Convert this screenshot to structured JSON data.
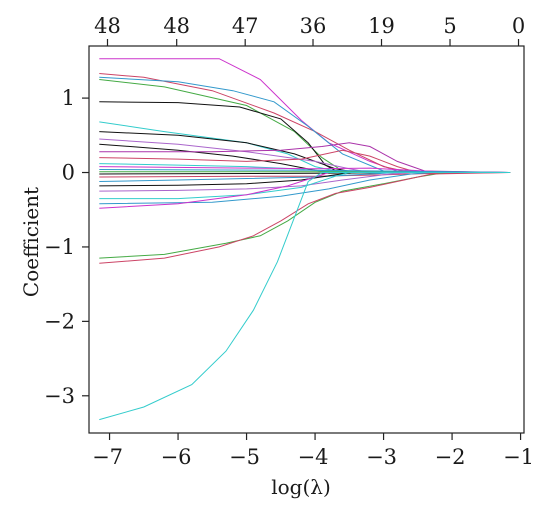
{
  "chart_data": {
    "type": "line",
    "title": "",
    "xlabel": "log(λ)",
    "ylabel": "Coefficient",
    "xlim": [
      -7.3,
      -0.95
    ],
    "ylim": [
      -3.5,
      1.7
    ],
    "x_ticks": [
      -7,
      -6,
      -5,
      -4,
      -3,
      -2,
      -1
    ],
    "x_tick_labels": [
      "−7",
      "−6",
      "−5",
      "−4",
      "−3",
      "−2",
      "−1"
    ],
    "y_ticks": [
      -3,
      -2,
      -1,
      0,
      1
    ],
    "y_tick_labels": [
      "−3",
      "−2",
      "−1",
      "0",
      "1"
    ],
    "top_axis": {
      "positions": [
        -7.03,
        -6.02,
        -5.02,
        -4.03,
        -3.03,
        -2.03,
        -1.03
      ],
      "labels": [
        "48",
        "48",
        "47",
        "36",
        "19",
        "5",
        "0"
      ]
    },
    "grid": false,
    "legend": "none",
    "series": [
      {
        "color": "#cc33cc",
        "points": [
          [
            -7.15,
            1.53
          ],
          [
            -5.4,
            1.53
          ],
          [
            -4.8,
            1.25
          ],
          [
            -4.2,
            0.7
          ],
          [
            -3.8,
            0.4
          ],
          [
            -3.2,
            0.15
          ],
          [
            -2.8,
            0.02
          ],
          [
            -1.15,
            0
          ]
        ]
      },
      {
        "color": "#cc4466",
        "points": [
          [
            -7.15,
            1.33
          ],
          [
            -6.5,
            1.28
          ],
          [
            -5.5,
            1.1
          ],
          [
            -4.6,
            0.8
          ],
          [
            -4,
            0.55
          ],
          [
            -3.5,
            0.3
          ],
          [
            -3,
            0.08
          ],
          [
            -2.6,
            0
          ],
          [
            -1.15,
            0
          ]
        ]
      },
      {
        "color": "#3399cc",
        "points": [
          [
            -7.15,
            1.28
          ],
          [
            -6,
            1.22
          ],
          [
            -5.2,
            1.1
          ],
          [
            -4.6,
            0.95
          ],
          [
            -4.1,
            0.62
          ],
          [
            -3.6,
            0.25
          ],
          [
            -3,
            0.02
          ],
          [
            -1.15,
            0
          ]
        ]
      },
      {
        "color": "#44aa44",
        "points": [
          [
            -7.15,
            1.25
          ],
          [
            -6.2,
            1.15
          ],
          [
            -5,
            0.9
          ],
          [
            -4.3,
            0.55
          ],
          [
            -3.9,
            0.2
          ],
          [
            -3.6,
            0.02
          ],
          [
            -1.15,
            0
          ]
        ]
      },
      {
        "color": "#111111",
        "points": [
          [
            -7.15,
            0.95
          ],
          [
            -6,
            0.94
          ],
          [
            -5.1,
            0.88
          ],
          [
            -4.5,
            0.72
          ],
          [
            -4.1,
            0.4
          ],
          [
            -3.85,
            0.1
          ],
          [
            -3.65,
            0
          ],
          [
            -1.15,
            0
          ]
        ]
      },
      {
        "color": "#33cccc",
        "points": [
          [
            -7.15,
            0.68
          ],
          [
            -6.2,
            0.55
          ],
          [
            -5,
            0.4
          ],
          [
            -4.4,
            0.25
          ],
          [
            -4,
            0.08
          ],
          [
            -3.6,
            0
          ],
          [
            -1.15,
            0
          ]
        ]
      },
      {
        "color": "#111111",
        "points": [
          [
            -7.15,
            0.55
          ],
          [
            -6,
            0.5
          ],
          [
            -5,
            0.4
          ],
          [
            -4.3,
            0.25
          ],
          [
            -3.7,
            0.05
          ],
          [
            -3.4,
            0
          ],
          [
            -1.15,
            0
          ]
        ]
      },
      {
        "color": "#aa66cc",
        "points": [
          [
            -7.15,
            0.45
          ],
          [
            -6,
            0.38
          ],
          [
            -5,
            0.28
          ],
          [
            -4,
            0.15
          ],
          [
            -3.5,
            0.05
          ],
          [
            -3.2,
            0
          ],
          [
            -1.15,
            0
          ]
        ]
      },
      {
        "color": "#111111",
        "points": [
          [
            -7.15,
            0.38
          ],
          [
            -6,
            0.3
          ],
          [
            -5.2,
            0.22
          ],
          [
            -4.5,
            0.12
          ],
          [
            -4,
            0.03
          ],
          [
            -3.7,
            0
          ],
          [
            -1.15,
            0
          ]
        ]
      },
      {
        "color": "#aa33aa",
        "points": [
          [
            -7.15,
            0.28
          ],
          [
            -5.5,
            0.28
          ],
          [
            -4.5,
            0.3
          ],
          [
            -3.9,
            0.35
          ],
          [
            -3.5,
            0.4
          ],
          [
            -3.2,
            0.35
          ],
          [
            -2.8,
            0.15
          ],
          [
            -2.4,
            0.02
          ],
          [
            -1.15,
            0
          ]
        ]
      },
      {
        "color": "#cc4466",
        "points": [
          [
            -7.15,
            0.2
          ],
          [
            -6,
            0.18
          ],
          [
            -5,
            0.15
          ],
          [
            -4.2,
            0.18
          ],
          [
            -3.6,
            0.3
          ],
          [
            -3.2,
            0.22
          ],
          [
            -2.8,
            0.08
          ],
          [
            -2.5,
            0
          ],
          [
            -1.15,
            0
          ]
        ]
      },
      {
        "color": "#33cccc",
        "points": [
          [
            -7.15,
            0.12
          ],
          [
            -6,
            0.1
          ],
          [
            -5,
            0.08
          ],
          [
            -4.3,
            0.05
          ],
          [
            -3.9,
            0.02
          ],
          [
            -1.15,
            0
          ]
        ]
      },
      {
        "color": "#cc33cc",
        "points": [
          [
            -7.15,
            0.08
          ],
          [
            -5,
            0.06
          ],
          [
            -4,
            0.05
          ],
          [
            -3.2,
            0.06
          ],
          [
            -2.6,
            0.03
          ],
          [
            -2.2,
            0.01
          ],
          [
            -1.15,
            0
          ]
        ]
      },
      {
        "color": "#3399cc",
        "points": [
          [
            -7.15,
            0.04
          ],
          [
            -4,
            0.03
          ],
          [
            -3,
            0.02
          ],
          [
            -2,
            0.01
          ],
          [
            -1.15,
            0
          ]
        ]
      },
      {
        "color": "#44aa44",
        "points": [
          [
            -7.15,
            0.01
          ],
          [
            -4,
            0.01
          ],
          [
            -2.5,
            0
          ],
          [
            -1.15,
            0
          ]
        ]
      },
      {
        "color": "#111111",
        "points": [
          [
            -7.15,
            -0.02
          ],
          [
            -4,
            -0.01
          ],
          [
            -2.5,
            0
          ],
          [
            -1.15,
            0
          ]
        ]
      },
      {
        "color": "#cc4466",
        "points": [
          [
            -7.15,
            -0.06
          ],
          [
            -5,
            -0.05
          ],
          [
            -4,
            -0.05
          ],
          [
            -3,
            -0.03
          ],
          [
            -2.2,
            -0.01
          ],
          [
            -1.15,
            0
          ]
        ]
      },
      {
        "color": "#3399cc",
        "points": [
          [
            -7.15,
            -0.12
          ],
          [
            -6,
            -0.1
          ],
          [
            -5,
            -0.08
          ],
          [
            -4,
            -0.06
          ],
          [
            -3.2,
            -0.02
          ],
          [
            -2.8,
            0
          ],
          [
            -1.15,
            0
          ]
        ]
      },
      {
        "color": "#111111",
        "points": [
          [
            -7.15,
            -0.18
          ],
          [
            -6,
            -0.17
          ],
          [
            -5,
            -0.15
          ],
          [
            -4.2,
            -0.1
          ],
          [
            -3.7,
            -0.03
          ],
          [
            -3.4,
            0
          ],
          [
            -1.15,
            0
          ]
        ]
      },
      {
        "color": "#aa66cc",
        "points": [
          [
            -7.15,
            -0.25
          ],
          [
            -6,
            -0.24
          ],
          [
            -5,
            -0.22
          ],
          [
            -4.2,
            -0.18
          ],
          [
            -3.6,
            -0.1
          ],
          [
            -3,
            -0.03
          ],
          [
            -2.6,
            0
          ],
          [
            -1.15,
            0
          ]
        ]
      },
      {
        "color": "#33cccc",
        "points": [
          [
            -7.15,
            -0.35
          ],
          [
            -6,
            -0.35
          ],
          [
            -5,
            -0.3
          ],
          [
            -4.2,
            -0.2
          ],
          [
            -3.7,
            -0.05
          ],
          [
            -3.5,
            0
          ],
          [
            -1.15,
            0
          ]
        ]
      },
      {
        "color": "#3399cc",
        "points": [
          [
            -7.15,
            -0.42
          ],
          [
            -5.5,
            -0.4
          ],
          [
            -4.5,
            -0.32
          ],
          [
            -3.8,
            -0.22
          ],
          [
            -3.2,
            -0.1
          ],
          [
            -2.6,
            -0.02
          ],
          [
            -2.3,
            0
          ],
          [
            -1.15,
            0
          ]
        ]
      },
      {
        "color": "#cc33cc",
        "points": [
          [
            -7.15,
            -0.48
          ],
          [
            -6,
            -0.42
          ],
          [
            -5,
            -0.3
          ],
          [
            -4.4,
            -0.18
          ],
          [
            -4,
            -0.06
          ],
          [
            -3.8,
            0
          ],
          [
            -1.15,
            0
          ]
        ]
      },
      {
        "color": "#44aa44",
        "points": [
          [
            -7.15,
            -1.15
          ],
          [
            -6.2,
            -1.1
          ],
          [
            -5.3,
            -0.95
          ],
          [
            -4.8,
            -0.85
          ],
          [
            -4.4,
            -0.65
          ],
          [
            -4,
            -0.4
          ],
          [
            -3.6,
            -0.25
          ],
          [
            -3,
            -0.15
          ],
          [
            -2.5,
            -0.06
          ],
          [
            -2.1,
            0
          ],
          [
            -1.15,
            0
          ]
        ]
      },
      {
        "color": "#cc4466",
        "points": [
          [
            -7.15,
            -1.22
          ],
          [
            -6.2,
            -1.15
          ],
          [
            -5.4,
            -1
          ],
          [
            -4.9,
            -0.85
          ],
          [
            -4.5,
            -0.65
          ],
          [
            -4.1,
            -0.42
          ],
          [
            -3.7,
            -0.28
          ],
          [
            -3.2,
            -0.2
          ],
          [
            -2.7,
            -0.1
          ],
          [
            -2.3,
            -0.02
          ],
          [
            -1.15,
            0
          ]
        ]
      },
      {
        "color": "#33cccc",
        "points": [
          [
            -7.15,
            -3.32
          ],
          [
            -6.5,
            -3.15
          ],
          [
            -5.8,
            -2.85
          ],
          [
            -5.3,
            -2.4
          ],
          [
            -4.9,
            -1.85
          ],
          [
            -4.55,
            -1.2
          ],
          [
            -4.3,
            -0.6
          ],
          [
            -4.1,
            -0.12
          ],
          [
            -3.9,
            0
          ],
          [
            -1.15,
            0
          ]
        ]
      }
    ]
  }
}
